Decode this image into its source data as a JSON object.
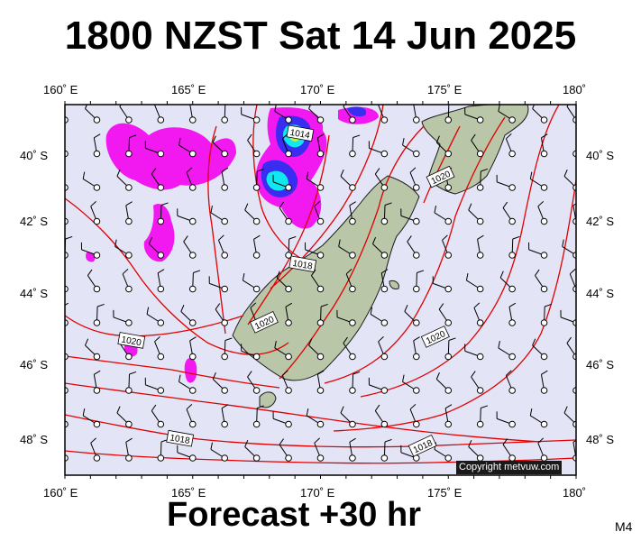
{
  "title": "1800 NZST Sat 14 Jun 2025",
  "footer": "Forecast +30 hr",
  "model": "M4",
  "copyright": "Copyright metvuw.com",
  "colors": {
    "ocean": "#e4e4f7",
    "land": "#b9c6a8",
    "isobar": "#e00000",
    "rain_magenta": "#f218f0",
    "rain_blue": "#3a2cf0",
    "rain_cyan": "#10e8f0",
    "rain_green": "#c8f040"
  },
  "axes": {
    "longitude_labels": [
      "160˚ E",
      "165˚ E",
      "170˚ E",
      "175˚ E",
      "180˚"
    ],
    "latitude_labels": [
      "40˚ S",
      "42˚ S",
      "44˚ S",
      "46˚ S",
      "48˚ S"
    ]
  },
  "isobar_labels": [
    {
      "text": "1014",
      "lon": 169.2,
      "lat": -39.6
    },
    {
      "text": "1020",
      "lon": 174.7,
      "lat": -40.8
    },
    {
      "text": "1018",
      "lon": 169.3,
      "lat": -43.2
    },
    {
      "text": "1020",
      "lon": 167.8,
      "lat": -44.8
    },
    {
      "text": "1020",
      "lon": 162.6,
      "lat": -45.3
    },
    {
      "text": "1020",
      "lon": 174.5,
      "lat": -45.2
    },
    {
      "text": "1018",
      "lon": 164.5,
      "lat": -48.0
    },
    {
      "text": "1018",
      "lon": 174.0,
      "lat": -48.2
    }
  ]
}
